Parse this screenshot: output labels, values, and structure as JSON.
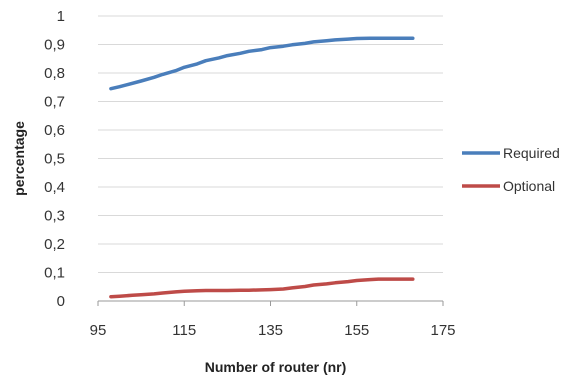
{
  "chart_data": {
    "type": "line",
    "title": "",
    "xlabel": "Number of router (nr)",
    "ylabel": "percentage",
    "xlim": [
      95,
      175
    ],
    "ylim": [
      0,
      1
    ],
    "xticks": [
      "95",
      "115",
      "135",
      "155",
      "175"
    ],
    "yticks": [
      "0",
      "0,1",
      "0,2",
      "0,3",
      "0,4",
      "0,5",
      "0,6",
      "0,7",
      "0,8",
      "0,9",
      "1"
    ],
    "grid": "horizontal",
    "legend_position": "right",
    "series": [
      {
        "name": "Required",
        "color": "#4a7ebb",
        "x": [
          98,
          100,
          102,
          105,
          108,
          110,
          113,
          115,
          118,
          120,
          123,
          125,
          128,
          130,
          133,
          135,
          138,
          140,
          143,
          145,
          148,
          150,
          153,
          155,
          158,
          160,
          163,
          165,
          168
        ],
        "y": [
          0.745,
          0.752,
          0.76,
          0.772,
          0.785,
          0.795,
          0.808,
          0.82,
          0.832,
          0.843,
          0.853,
          0.861,
          0.869,
          0.876,
          0.882,
          0.889,
          0.894,
          0.899,
          0.904,
          0.909,
          0.913,
          0.916,
          0.919,
          0.921,
          0.922,
          0.922,
          0.922,
          0.922,
          0.922
        ]
      },
      {
        "name": "Optional",
        "color": "#be4b48",
        "x": [
          98,
          100,
          103,
          105,
          108,
          110,
          113,
          115,
          118,
          120,
          123,
          125,
          128,
          130,
          133,
          135,
          138,
          140,
          143,
          145,
          148,
          150,
          153,
          155,
          158,
          160,
          163,
          165,
          168
        ],
        "y": [
          0.015,
          0.017,
          0.02,
          0.022,
          0.025,
          0.028,
          0.032,
          0.034,
          0.036,
          0.037,
          0.037,
          0.037,
          0.038,
          0.038,
          0.039,
          0.04,
          0.042,
          0.046,
          0.051,
          0.056,
          0.06,
          0.064,
          0.068,
          0.072,
          0.075,
          0.077,
          0.077,
          0.077,
          0.077
        ]
      }
    ]
  }
}
